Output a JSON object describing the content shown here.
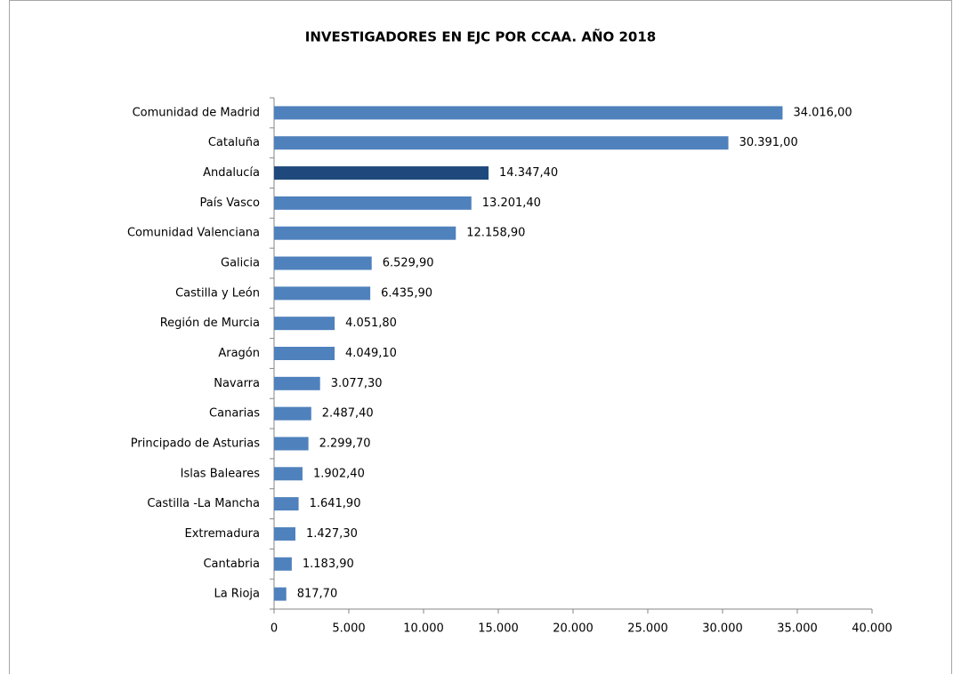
{
  "chart_data": {
    "type": "bar",
    "orientation": "horizontal",
    "title": "INVESTIGADORES EN EJC POR CCAA. AÑO 2018",
    "categories": [
      "Comunidad de Madrid",
      "Cataluña",
      "Andalucía",
      "País Vasco",
      "Comunidad Valenciana",
      "Galicia",
      "Castilla y León",
      "Región de Murcia",
      "Aragón",
      "Navarra",
      "Canarias",
      "Principado de Asturias",
      "Islas Baleares",
      "Castilla -La Mancha",
      "Extremadura",
      "Cantabria",
      "La Rioja"
    ],
    "values": [
      34016,
      30391,
      14347.4,
      13201.4,
      12158.9,
      6529.9,
      6435.9,
      4051.8,
      4049.1,
      3077.3,
      2487.4,
      2299.7,
      1902.4,
      1641.9,
      1427.3,
      1183.9,
      817.7
    ],
    "value_labels": [
      "34.016,00",
      "30.391,00",
      "14.347,40",
      "13.201,40",
      "12.158,90",
      "6.529,90",
      "6.435,90",
      "4.051,80",
      "4.049,10",
      "3.077,30",
      "2.487,40",
      "2.299,70",
      "1.902,40",
      "1.641,90",
      "1.427,30",
      "1.183,90",
      "817,70"
    ],
    "colors": [
      "#4f81bd",
      "#4f81bd",
      "#1f497d",
      "#4f81bd",
      "#4f81bd",
      "#4f81bd",
      "#4f81bd",
      "#4f81bd",
      "#4f81bd",
      "#4f81bd",
      "#4f81bd",
      "#4f81bd",
      "#4f81bd",
      "#4f81bd",
      "#4f81bd",
      "#4f81bd",
      "#4f81bd"
    ],
    "xlim": [
      0,
      40000
    ],
    "xticks": [
      0,
      {
        "value": 5000,
        "label": "5.000"
      },
      {
        "value": 10000,
        "label": "10.000"
      },
      {
        "value": 15000,
        "label": "15.000"
      },
      {
        "value": 20000,
        "label": "20.000"
      },
      {
        "value": 25000,
        "label": "25.000"
      },
      {
        "value": 30000,
        "label": "30.000"
      },
      {
        "value": 35000,
        "label": "35.000"
      },
      {
        "value": 40000,
        "label": "40.000"
      }
    ]
  }
}
